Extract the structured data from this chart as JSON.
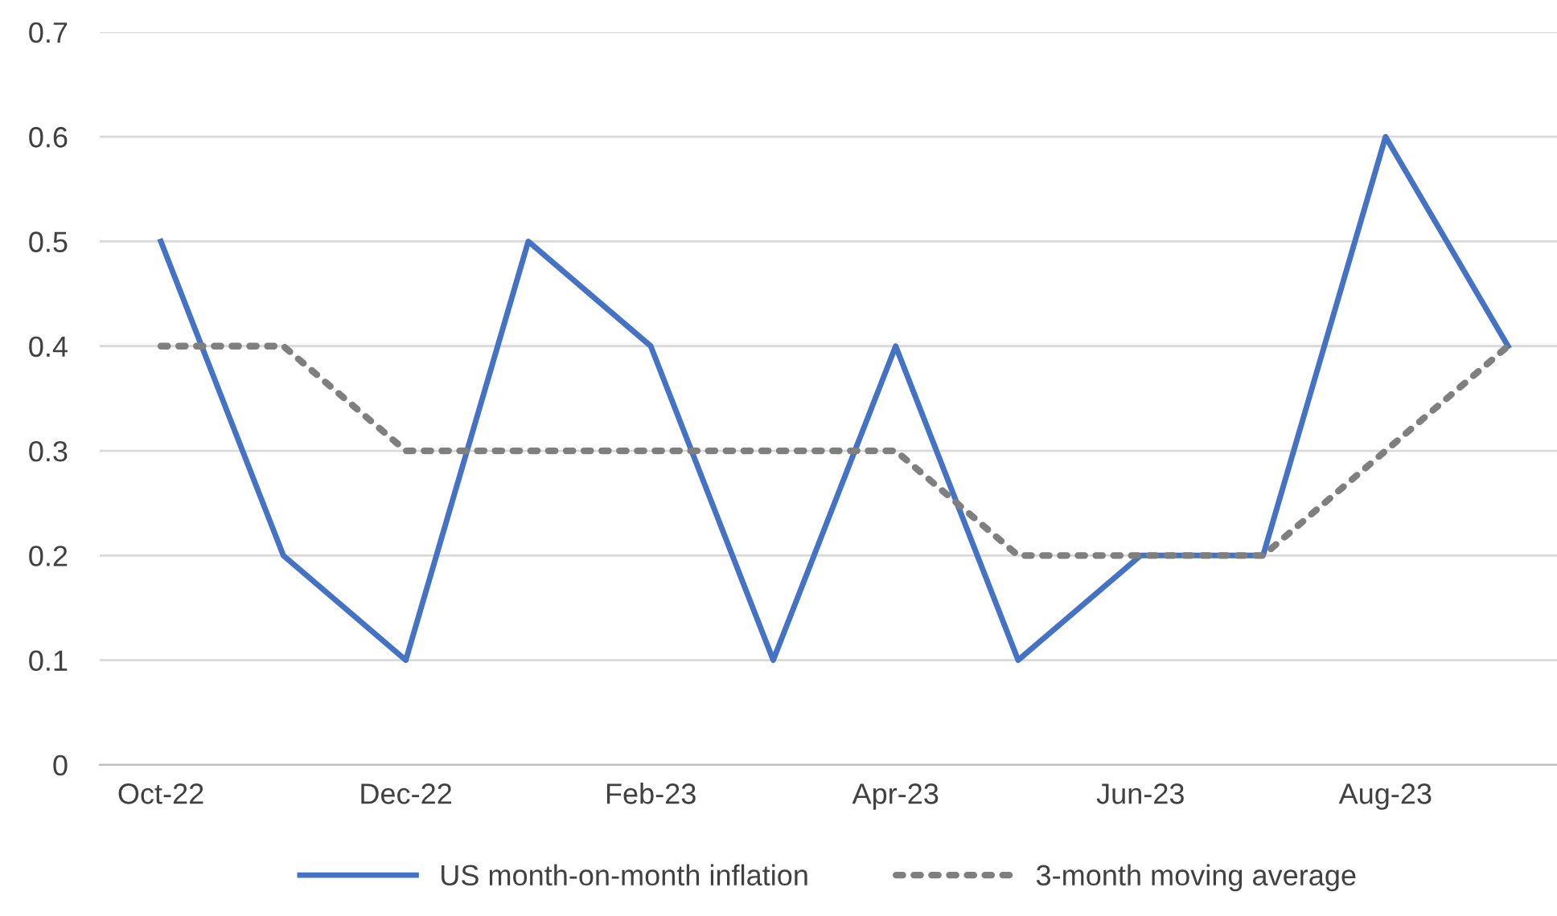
{
  "chart_data": {
    "type": "line",
    "categories": [
      "Oct-22",
      null,
      "Dec-22",
      null,
      "Feb-23",
      null,
      "Apr-23",
      null,
      "Jun-23",
      null,
      "Aug-23",
      null
    ],
    "series": [
      {
        "name": "US month-on-month inflation",
        "color": "#4472c4",
        "line_style": "solid",
        "values": [
          0.5,
          0.2,
          0.1,
          0.5,
          0.4,
          0.1,
          0.4,
          0.1,
          0.2,
          0.2,
          0.6,
          0.4
        ]
      },
      {
        "name": "3-month moving average",
        "color": "#7f7f7f",
        "line_style": "dotted",
        "values": [
          0.4,
          0.4,
          0.3,
          0.3,
          0.3,
          0.3,
          0.3,
          0.2,
          0.2,
          0.2,
          0.3,
          0.4
        ]
      }
    ],
    "ylim": [
      0,
      0.7
    ],
    "yticks": [
      0,
      0.1,
      0.2,
      0.3,
      0.4,
      0.5,
      0.6,
      0.7
    ],
    "grid": "y",
    "legend": "bottom",
    "marker": "none"
  }
}
